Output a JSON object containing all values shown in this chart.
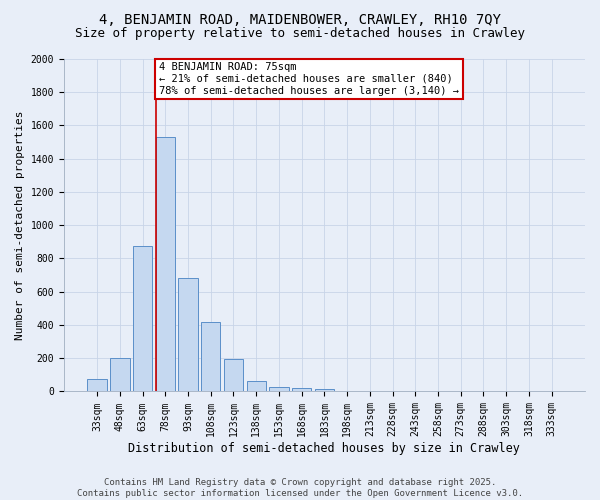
{
  "title": "4, BENJAMIN ROAD, MAIDENBOWER, CRAWLEY, RH10 7QY",
  "subtitle": "Size of property relative to semi-detached houses in Crawley",
  "xlabel": "Distribution of semi-detached houses by size in Crawley",
  "ylabel": "Number of semi-detached properties",
  "bar_labels": [
    "33sqm",
    "48sqm",
    "63sqm",
    "78sqm",
    "93sqm",
    "108sqm",
    "123sqm",
    "138sqm",
    "153sqm",
    "168sqm",
    "183sqm",
    "198sqm",
    "213sqm",
    "228sqm",
    "243sqm",
    "258sqm",
    "273sqm",
    "288sqm",
    "303sqm",
    "318sqm",
    "333sqm"
  ],
  "bar_values": [
    75,
    200,
    875,
    1530,
    680,
    420,
    195,
    60,
    25,
    18,
    15,
    0,
    0,
    0,
    0,
    0,
    0,
    0,
    0,
    0,
    0
  ],
  "bar_color": "#c5d8f0",
  "bar_edge_color": "#5b8fc9",
  "vline_color": "#cc0000",
  "annotation_text": "4 BENJAMIN ROAD: 75sqm\n← 21% of semi-detached houses are smaller (840)\n78% of semi-detached houses are larger (3,140) →",
  "annotation_box_color": "#ffffff",
  "annotation_box_edge": "#cc0000",
  "grid_color": "#c8d4e8",
  "background_color": "#e8eef8",
  "ylim": [
    0,
    2000
  ],
  "yticks": [
    0,
    200,
    400,
    600,
    800,
    1000,
    1200,
    1400,
    1600,
    1800,
    2000
  ],
  "footer_text": "Contains HM Land Registry data © Crown copyright and database right 2025.\nContains public sector information licensed under the Open Government Licence v3.0.",
  "title_fontsize": 10,
  "subtitle_fontsize": 9,
  "xlabel_fontsize": 8.5,
  "ylabel_fontsize": 8,
  "tick_fontsize": 7,
  "annotation_fontsize": 7.5,
  "footer_fontsize": 6.5,
  "vline_bin": 3
}
